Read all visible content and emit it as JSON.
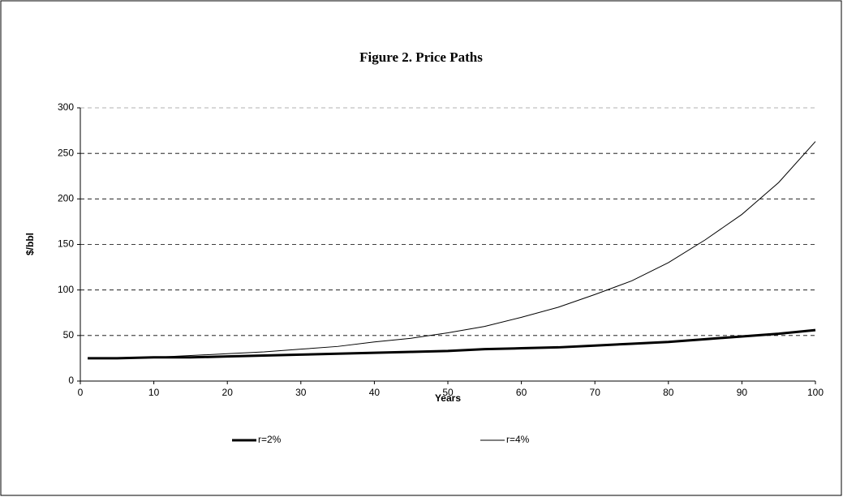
{
  "chart_data": {
    "type": "line",
    "title": "Figure 2. Price Paths",
    "x_label": "Years",
    "y_label": "$/bbl",
    "x": [
      1,
      5,
      10,
      15,
      20,
      25,
      30,
      35,
      40,
      45,
      50,
      55,
      60,
      65,
      70,
      75,
      80,
      85,
      90,
      95,
      100
    ],
    "series": [
      {
        "name": "r=2%",
        "color": "#000000",
        "width": 3,
        "values": [
          25,
          25,
          26,
          26,
          27,
          28,
          29,
          30,
          31,
          32,
          33,
          35,
          36,
          37,
          39,
          41,
          43,
          46,
          49,
          52,
          56
        ]
      },
      {
        "name": "r=4%",
        "color": "#000000",
        "width": 1,
        "values": [
          25,
          25,
          26,
          28,
          30,
          32,
          35,
          38,
          43,
          47,
          53,
          60,
          70,
          81,
          95,
          110,
          130,
          155,
          183,
          218,
          263
        ]
      }
    ],
    "xlim": [
      0,
      100
    ],
    "xticks": [
      0,
      10,
      20,
      30,
      40,
      50,
      60,
      70,
      80,
      90,
      100
    ],
    "ylim": [
      0,
      300
    ],
    "yticks": [
      0,
      50,
      100,
      150,
      200,
      250,
      300
    ],
    "grid": true,
    "legend": "bottom"
  }
}
